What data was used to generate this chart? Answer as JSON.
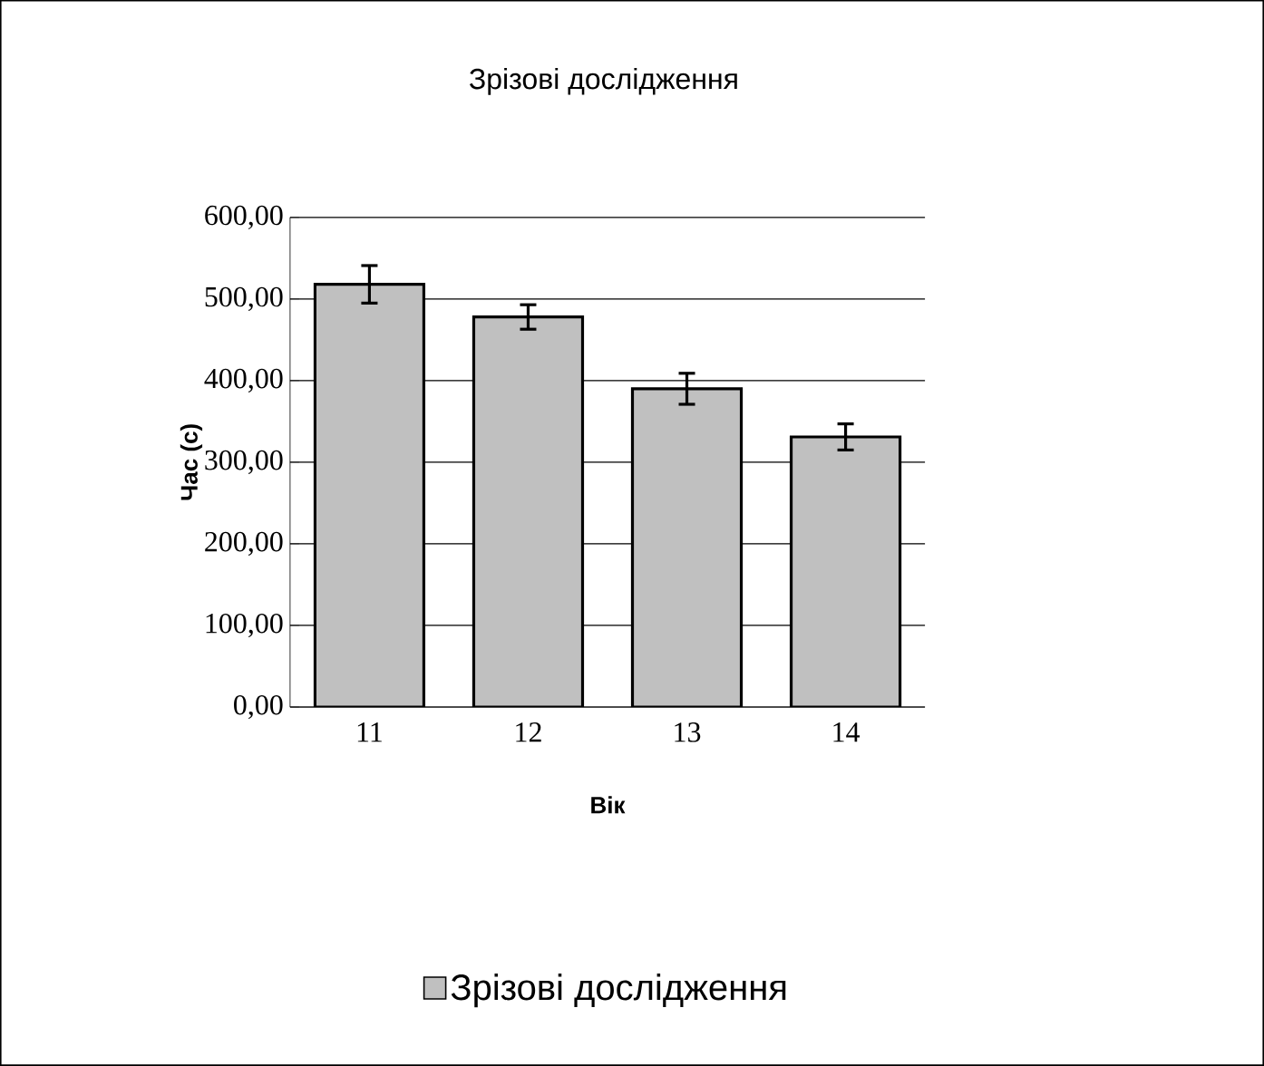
{
  "chart_data": {
    "type": "bar",
    "title": "Зрізові дослідження",
    "xlabel": "Вік",
    "ylabel": "Час (с)",
    "categories": [
      "11",
      "12",
      "13",
      "14"
    ],
    "series": [
      {
        "name": "Зрізові дослідження",
        "color": "#c0c0c0",
        "values": [
          518,
          478,
          390,
          331
        ],
        "errors": [
          23,
          15,
          19,
          16
        ]
      }
    ],
    "ylim": [
      0,
      600
    ],
    "yticks": [
      {
        "value": 0,
        "label": "0,00"
      },
      {
        "value": 100,
        "label": "100,00"
      },
      {
        "value": 200,
        "label": "200,00"
      },
      {
        "value": 300,
        "label": "300,00"
      },
      {
        "value": 400,
        "label": "400,00"
      },
      {
        "value": 500,
        "label": "500,00"
      },
      {
        "value": 600,
        "label": "600,00"
      }
    ],
    "grid": "y",
    "legend": "bottom"
  }
}
